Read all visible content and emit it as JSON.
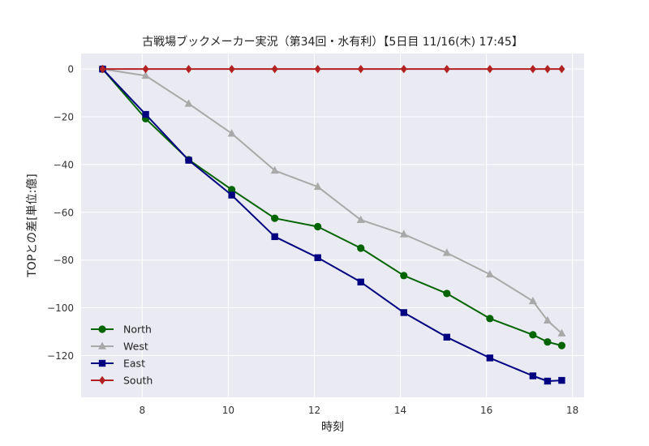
{
  "chart_data": {
    "type": "line",
    "title": "古戦場ブックメーカー実況（第34回・水有利）【5日目 11/16(木) 17:45】",
    "xlabel": "時刻",
    "ylabel": "TOPとの差[単位:億]",
    "xlim": [
      6.58,
      18.27
    ],
    "ylim": [
      -137.5,
      6.5
    ],
    "xticks": [
      8,
      10,
      12,
      14,
      16,
      18
    ],
    "yticks": [
      0,
      -20,
      -40,
      -60,
      -80,
      -100,
      -120
    ],
    "ytick_labels": [
      "0",
      "−20",
      "−40",
      "−60",
      "−80",
      "−100",
      "−120"
    ],
    "grid": true,
    "legend_position": "lower-left",
    "x": [
      7.08,
      8.08,
      9.08,
      10.08,
      11.08,
      12.08,
      13.08,
      14.08,
      15.08,
      16.08,
      17.08,
      17.42,
      17.75
    ],
    "series": [
      {
        "name": "North",
        "color": "#006400",
        "marker": "circle",
        "values": [
          0,
          -20.8,
          -38,
          -50.5,
          -62.5,
          -66,
          -75,
          -86.5,
          -94,
          -104.5,
          -111.3,
          -114.3,
          -115.8
        ]
      },
      {
        "name": "West",
        "color": "#a9a9a9",
        "marker": "triangle",
        "values": [
          0,
          -2.8,
          -14.5,
          -27,
          -42.5,
          -49.3,
          -63.2,
          -69.2,
          -77,
          -86,
          -97.2,
          -105.3,
          -110.7
        ]
      },
      {
        "name": "East",
        "color": "#000080",
        "marker": "square",
        "values": [
          0,
          -19,
          -38.2,
          -52.8,
          -70.2,
          -79,
          -89.2,
          -102,
          -112.3,
          -121,
          -128.5,
          -130.7,
          -130.4
        ]
      },
      {
        "name": "South",
        "color": "#b22222",
        "marker": "diamond",
        "values": [
          0,
          0,
          0,
          0,
          0,
          0,
          0,
          0,
          0,
          0,
          0,
          0,
          0
        ]
      }
    ]
  }
}
